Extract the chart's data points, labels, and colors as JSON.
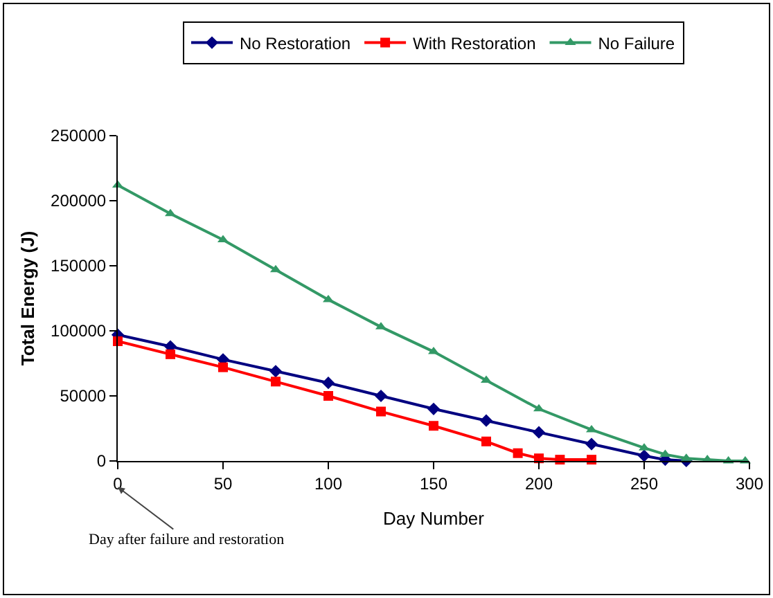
{
  "chart_data": {
    "type": "line",
    "xlabel": "Day Number",
    "ylabel": "Total Energy (J)",
    "xlim": [
      0,
      300
    ],
    "xticks": [
      0,
      50,
      100,
      150,
      200,
      250,
      300
    ],
    "ylim": [
      0,
      250000
    ],
    "yticks": [
      0,
      50000,
      100000,
      150000,
      200000,
      250000
    ],
    "grid": false,
    "legend": "top",
    "line_style": "solid",
    "annotations": [
      "Day after failure and restoration"
    ],
    "series": [
      {
        "name": "No Restoration",
        "color": "#000080",
        "marker": "diamond",
        "x": [
          0,
          25,
          50,
          75,
          100,
          125,
          150,
          175,
          200,
          225,
          250,
          260,
          270
        ],
        "values": [
          97000,
          88000,
          78000,
          69000,
          60000,
          50000,
          40000,
          31000,
          22000,
          13000,
          4000,
          1000,
          0
        ]
      },
      {
        "name": "With Restoration",
        "color": "#ff0000",
        "marker": "square",
        "x": [
          0,
          25,
          50,
          75,
          100,
          125,
          150,
          175,
          190,
          200,
          210,
          225
        ],
        "values": [
          92000,
          82000,
          72000,
          61000,
          50000,
          38000,
          27000,
          15000,
          6000,
          2000,
          1000,
          1000
        ]
      },
      {
        "name": "No Failure",
        "color": "#339966",
        "marker": "triangle",
        "x": [
          0,
          25,
          50,
          75,
          100,
          125,
          150,
          175,
          200,
          225,
          250,
          260,
          270,
          280,
          290,
          298
        ],
        "values": [
          212000,
          190000,
          170000,
          147000,
          124000,
          103000,
          84000,
          62000,
          40000,
          24000,
          10000,
          5000,
          2000,
          1000,
          0,
          0
        ]
      }
    ]
  }
}
